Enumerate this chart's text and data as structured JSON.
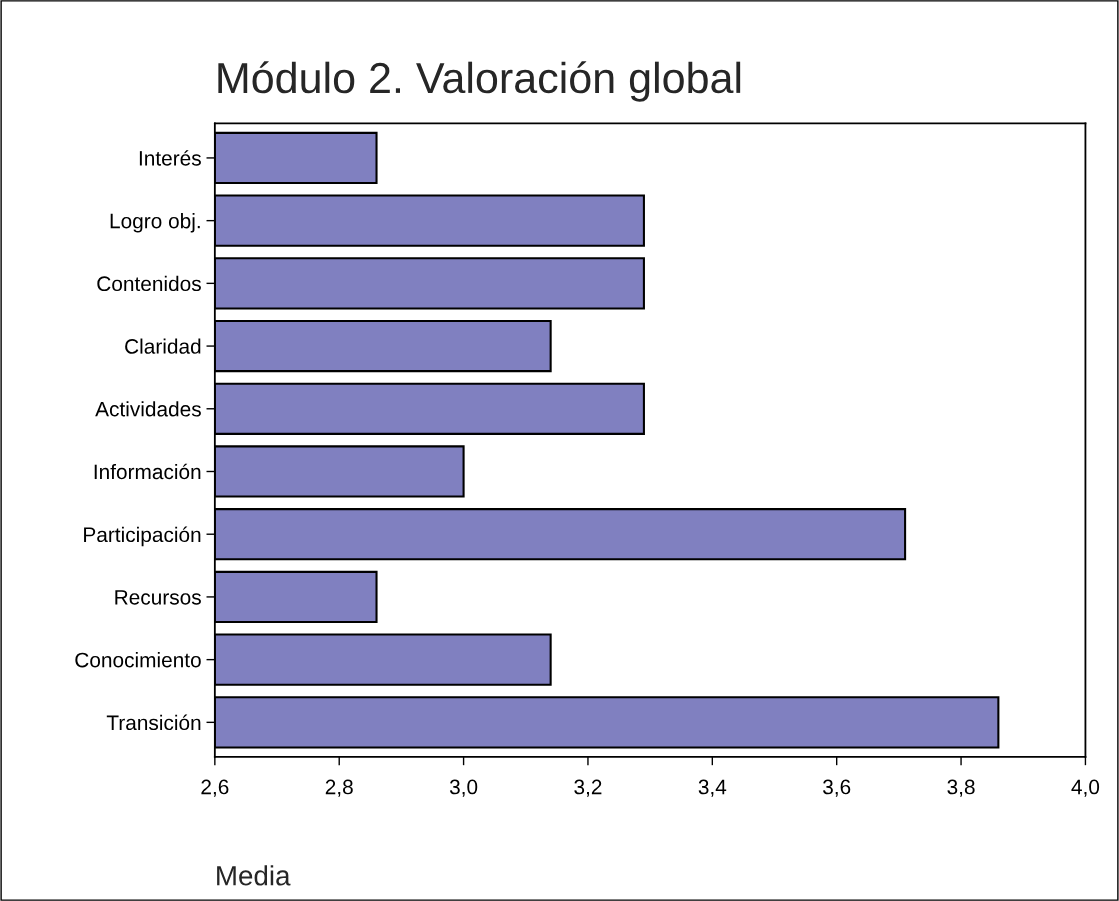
{
  "chart_data": {
    "type": "bar",
    "orientation": "horizontal",
    "title": "Módulo 2. Valoración global",
    "xlabel": "Media",
    "categories": [
      "Interés",
      "Logro obj.",
      "Contenidos",
      "Claridad",
      "Actividades",
      "Información",
      "Participación",
      "Recursos",
      "Conocimiento",
      "Transición"
    ],
    "values": [
      2.86,
      3.29,
      3.29,
      3.14,
      3.29,
      3.0,
      3.71,
      2.86,
      3.14,
      3.86
    ],
    "color": "#8080c0",
    "xlim": [
      2.6,
      4.0
    ],
    "xticks": [
      {
        "value": 2.6,
        "label": "2,6"
      },
      {
        "value": 2.8,
        "label": "2,8"
      },
      {
        "value": 3.0,
        "label": "3,0"
      },
      {
        "value": 3.2,
        "label": "3,2"
      },
      {
        "value": 3.4,
        "label": "3,4"
      },
      {
        "value": 3.6,
        "label": "3,6"
      },
      {
        "value": 3.8,
        "label": "3,8"
      },
      {
        "value": 4.0,
        "label": "4,0"
      }
    ],
    "grid": false
  }
}
